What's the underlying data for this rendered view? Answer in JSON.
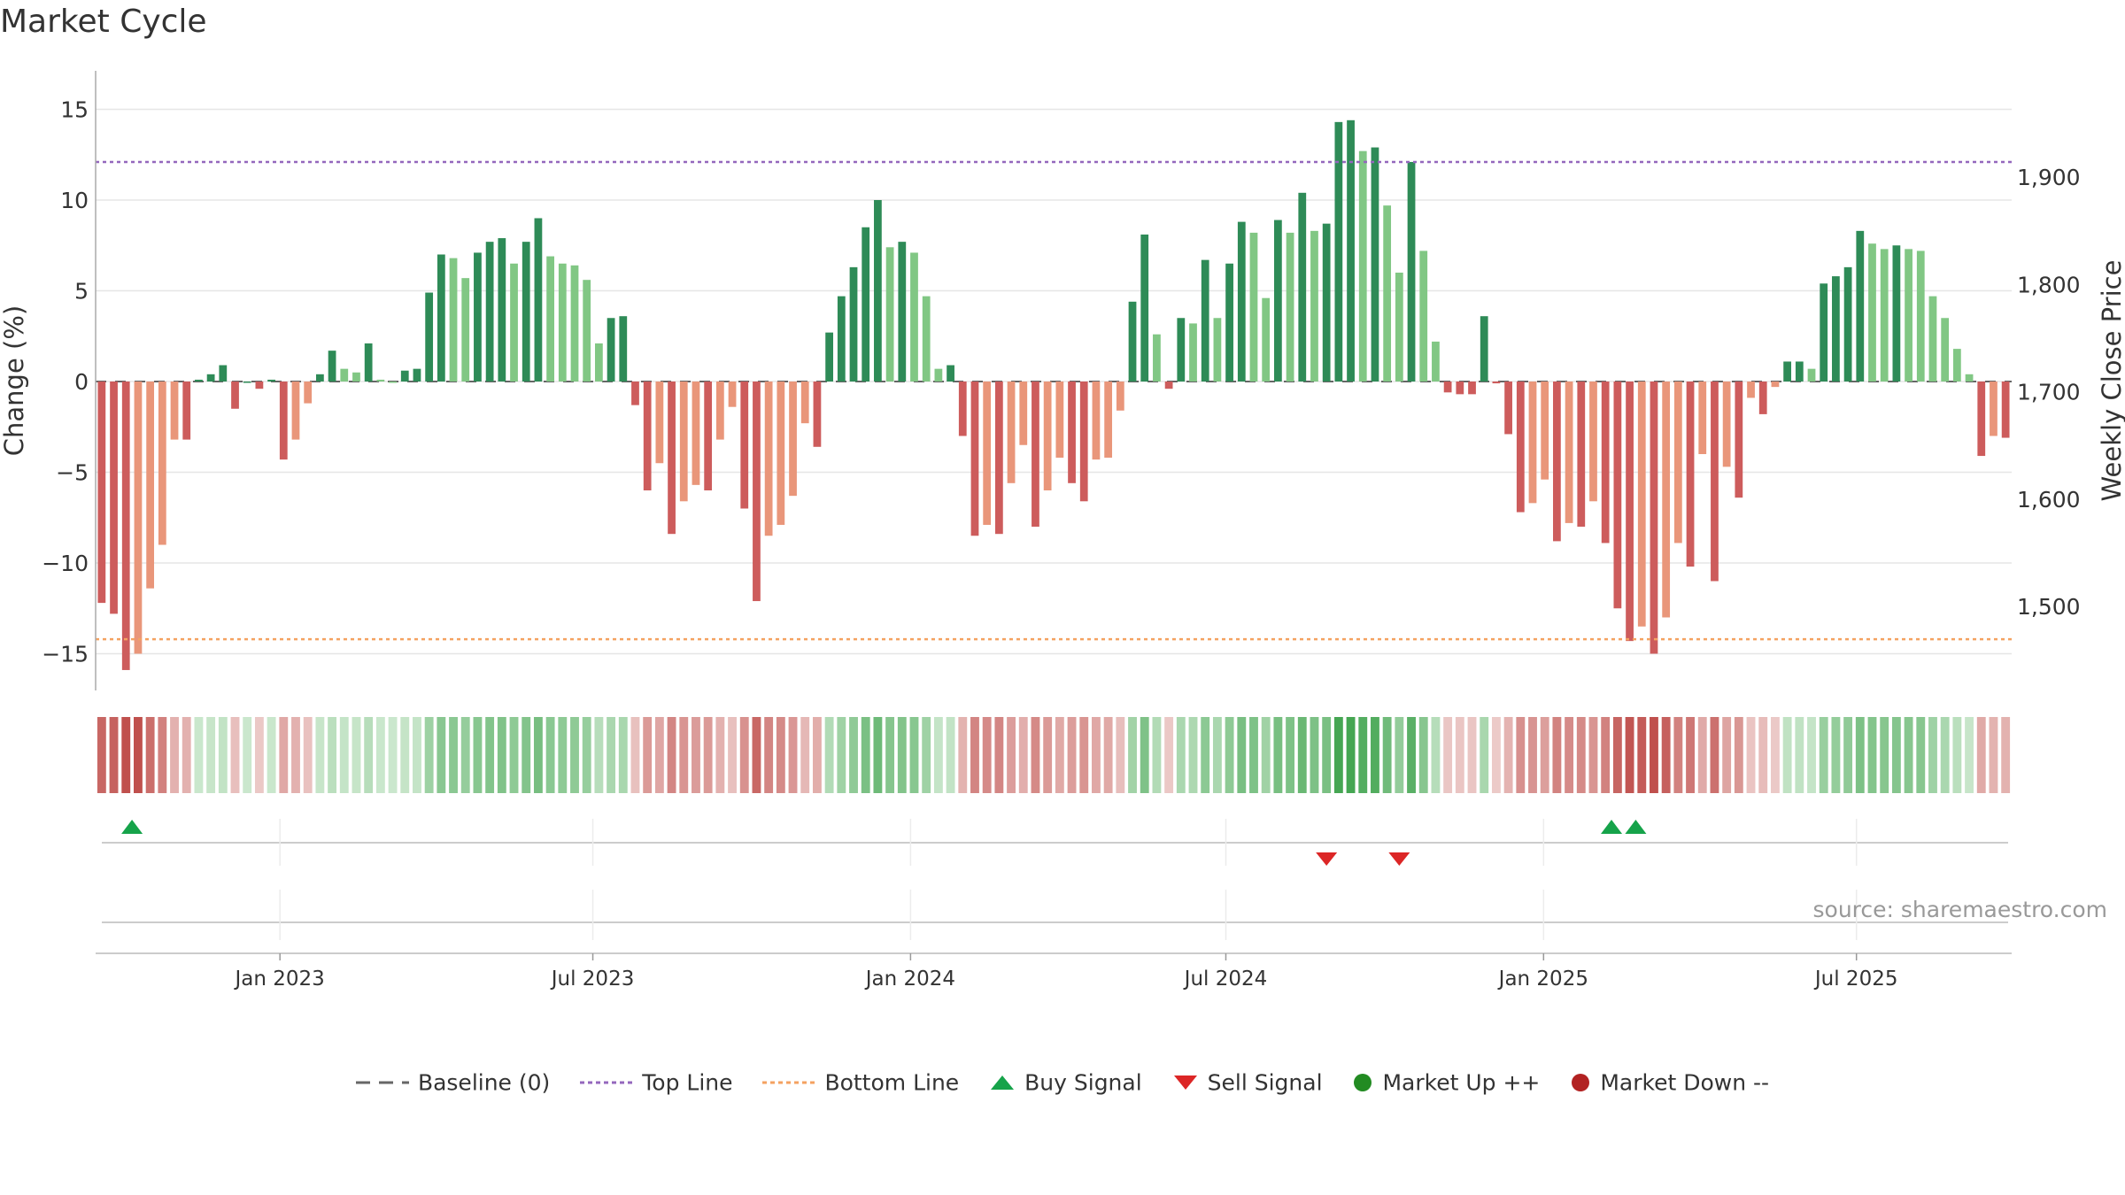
{
  "title": "Market Cycle",
  "source": "source: sharemaestro.com",
  "chart_data": {
    "type": "bar",
    "title": "Market Cycle",
    "ylabel": "Change (%)",
    "y2label": "Weekly Close Price",
    "ylim": [
      -17,
      17.5
    ],
    "y_ticks": [
      15,
      10,
      5,
      0,
      -5,
      -10,
      -15
    ],
    "y_tick_labels": [
      "15",
      "10",
      "5",
      "0",
      "−5",
      "−10",
      "−15"
    ],
    "y2_ticks": [
      1900,
      1800,
      1700,
      1600,
      1500
    ],
    "y2_tick_labels": [
      "1,900",
      "1,800",
      "1,700",
      "1,600",
      "1,500"
    ],
    "top_line": 12.1,
    "bottom_line": -14.2,
    "x_tick_labels": [
      "Jan 2023",
      "Jul 2023",
      "Jan 2024",
      "Jul 2024",
      "Jan 2025",
      "Jul 2025"
    ],
    "x_tick_bar_index": [
      14.7,
      40.5,
      66.7,
      92.7,
      118.9,
      144.7
    ],
    "values": [
      -12.2,
      -12.8,
      -15.9,
      -15.0,
      -11.4,
      -9.0,
      -3.2,
      -3.2,
      0.1,
      0.4,
      0.9,
      -1.5,
      0.0,
      -0.4,
      0.1,
      -4.3,
      -3.2,
      -1.2,
      0.4,
      1.7,
      0.7,
      0.5,
      2.1,
      0.1,
      0.0,
      0.6,
      0.7,
      4.9,
      7.0,
      6.8,
      5.7,
      7.1,
      7.7,
      7.9,
      6.5,
      7.7,
      9.0,
      6.9,
      6.5,
      6.4,
      5.6,
      2.1,
      3.5,
      3.6,
      -1.3,
      -6.0,
      -4.5,
      -8.4,
      -6.6,
      -5.7,
      -6.0,
      -3.2,
      -1.4,
      -7.0,
      -12.1,
      -8.5,
      -7.9,
      -6.3,
      -2.3,
      -3.6,
      2.7,
      4.7,
      6.3,
      8.5,
      10.0,
      7.4,
      7.7,
      7.1,
      4.7,
      0.7,
      0.9,
      -3.0,
      -8.5,
      -7.9,
      -8.4,
      -5.6,
      -3.5,
      -8.0,
      -6.0,
      -4.2,
      -5.6,
      -6.6,
      -4.3,
      -4.2,
      -1.6,
      4.4,
      8.1,
      2.6,
      -0.4,
      3.5,
      3.2,
      6.7,
      3.5,
      6.5,
      8.8,
      8.2,
      4.6,
      8.9,
      8.2,
      10.4,
      8.3,
      8.7,
      14.3,
      14.4,
      12.7,
      12.9,
      9.7,
      6.0,
      12.1,
      7.2,
      2.2,
      -0.6,
      -0.7,
      -0.7,
      3.6,
      -0.1,
      -2.9,
      -7.2,
      -6.7,
      -5.4,
      -8.8,
      -7.8,
      -8.0,
      -6.6,
      -8.9,
      -12.5,
      -14.3,
      -13.5,
      -15.0,
      -13.0,
      -8.9,
      -10.2,
      -4.0,
      -11.0,
      -4.7,
      -6.4,
      -0.9,
      -1.8,
      -0.3,
      1.1,
      1.1,
      0.7,
      5.4,
      5.8,
      6.3,
      8.3,
      7.6,
      7.3,
      7.5,
      7.3,
      7.2,
      4.7,
      3.5,
      1.8,
      0.4,
      -4.1,
      -3.0,
      -3.1
    ],
    "buy_signals_bar_index": [
      2.5,
      124.5,
      126.5
    ],
    "sell_signals_bar_index": [
      101,
      107
    ],
    "legend": [
      "Baseline (0)",
      "Top Line",
      "Bottom Line",
      "Buy Signal",
      "Sell Signal",
      "Market Up ++",
      "Market Down --"
    ],
    "colors": {
      "strong_up": "#2e8b57",
      "weak_up": "#81c784",
      "strong_down": "#cd5c5c",
      "weak_down": "#e9967a",
      "top_line": "#9467bd",
      "bottom_line": "#f4a261",
      "buy": "#16a34a",
      "sell": "#dc2626",
      "market_up": "#228b22",
      "market_down": "#b22222"
    }
  }
}
